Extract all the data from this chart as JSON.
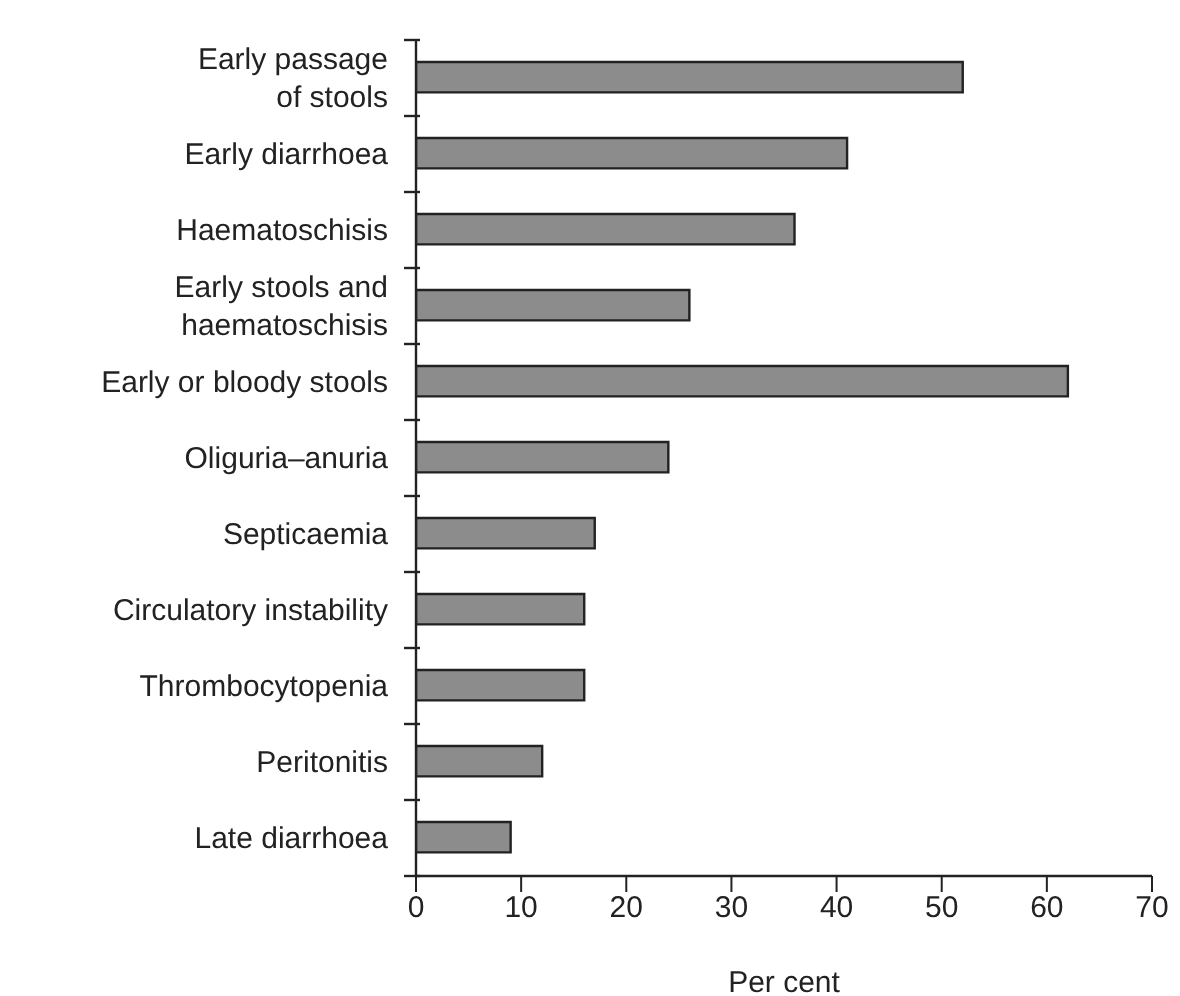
{
  "chart_data": {
    "type": "bar",
    "orientation": "horizontal",
    "categories": [
      "Early passage\nof stools",
      "Early diarrhoea",
      "Haematoschisis",
      "Early stools and\nhaematoschisis",
      "Early or bloody stools",
      "Oliguria–anuria",
      "Septicaemia",
      "Circulatory instability",
      "Thrombocytopenia",
      "Peritonitis",
      "Late diarrhoea"
    ],
    "values": [
      52,
      41,
      36,
      26,
      62,
      24,
      17,
      16,
      16,
      12,
      9
    ],
    "color": "#8c8c8c",
    "xlabel": "Per cent",
    "xlim": [
      0,
      70
    ],
    "xticks": [
      0,
      10,
      20,
      30,
      40,
      50,
      60,
      70
    ],
    "grid": false,
    "legend": false
  }
}
